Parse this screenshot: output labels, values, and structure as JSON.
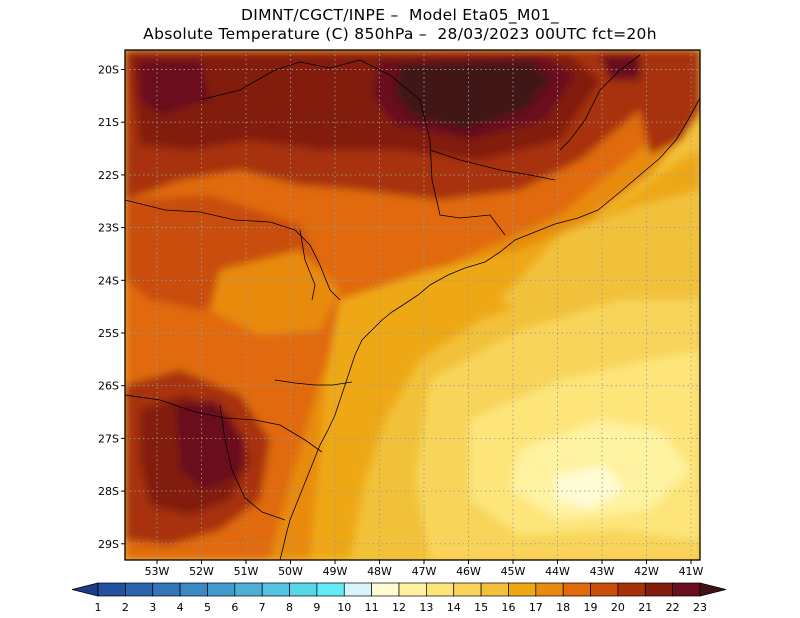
{
  "header": {
    "line1": "DIMNT/CGCT/INPE –  Model Eta05_M01_",
    "line2": "Absolute Temperature (C) 850hPa –  28/03/2023 00UTC fct=20h"
  },
  "map": {
    "lat_labels": [
      "20S",
      "21S",
      "22S",
      "23S",
      "24S",
      "25S",
      "26S",
      "27S",
      "28S",
      "29S"
    ],
    "lon_labels": [
      "53W",
      "52W",
      "51W",
      "50W",
      "49W",
      "48W",
      "47W",
      "46W",
      "45W",
      "44W",
      "43W",
      "42W",
      "41W"
    ],
    "region": "Southeast / South Brazil",
    "field": "Absolute Temperature (C) 850hPa"
  },
  "colorbar": {
    "labels": [
      "1",
      "2",
      "3",
      "4",
      "5",
      "6",
      "7",
      "8",
      "9",
      "10",
      "11",
      "12",
      "13",
      "14",
      "15",
      "16",
      "17",
      "18",
      "19",
      "20",
      "21",
      "22",
      "23"
    ],
    "colors": [
      "#1f3b8c",
      "#23509f",
      "#2b63ad",
      "#3275b8",
      "#3b88c3",
      "#439bcd",
      "#4cafd6",
      "#53c3df",
      "#57d6e8",
      "#62ebf6",
      "#d6f5fb",
      "#fffbd2",
      "#fff2a0",
      "#fde57a",
      "#f8d55a",
      "#f2c13a",
      "#eea814",
      "#e88b10",
      "#e06a0c",
      "#c94e0a",
      "#a73209",
      "#821c0c",
      "#6a0f1f",
      "#3f1216"
    ]
  },
  "colors": {
    "frame": "#000000",
    "grid": "#9a9a9a",
    "coast": "#000000"
  }
}
